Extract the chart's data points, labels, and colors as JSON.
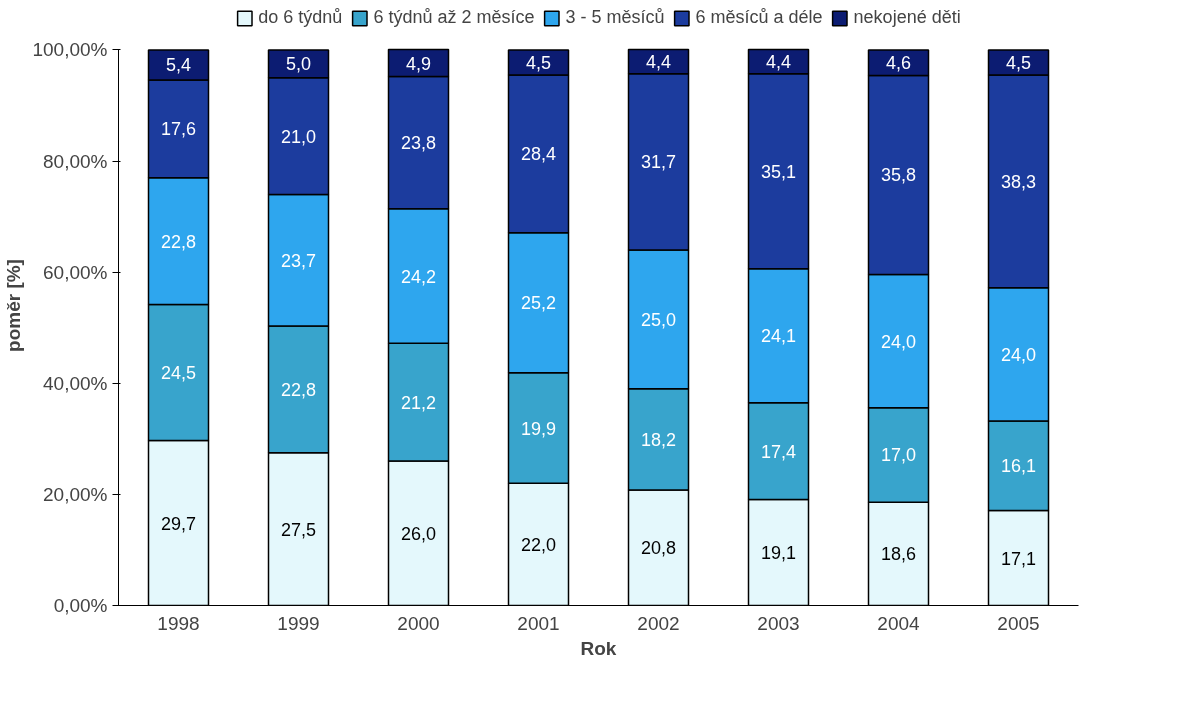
{
  "chart_data": {
    "type": "bar",
    "stacked": true,
    "xlabel": "Rok",
    "ylabel": "poměr [%]",
    "categories": [
      "1998",
      "1999",
      "2000",
      "2001",
      "2002",
      "2003",
      "2004",
      "2005"
    ],
    "ylim": [
      0,
      100
    ],
    "yticks": [
      {
        "value": 0,
        "label": "0,00%"
      },
      {
        "value": 20,
        "label": "20,00%"
      },
      {
        "value": 40,
        "label": "40,00%"
      },
      {
        "value": 60,
        "label": "60,00%"
      },
      {
        "value": 80,
        "label": "80,00%"
      },
      {
        "value": 100,
        "label": "100,00%"
      }
    ],
    "grid": false,
    "legend": "top",
    "series": [
      {
        "name": "do 6 týdnů",
        "color": "#e4f8fc",
        "values": [
          29.7,
          27.5,
          26.0,
          22.0,
          20.8,
          19.1,
          18.6,
          17.1
        ],
        "value_labels": [
          "29,7",
          "27,5",
          "26,0",
          "22,0",
          "20,8",
          "19,1",
          "18,6",
          "17,1"
        ]
      },
      {
        "name": "6 týdnů až 2 měsíce",
        "color": "#38a4cc",
        "values": [
          24.5,
          22.8,
          21.2,
          19.9,
          18.2,
          17.4,
          17.0,
          16.1
        ],
        "value_labels": [
          "24,5",
          "22,8",
          "21,2",
          "19,9",
          "18,2",
          "17,4",
          "17,0",
          "16,1"
        ]
      },
      {
        "name": "3 - 5 měsíců",
        "color": "#2ea6ee",
        "values": [
          22.8,
          23.7,
          24.2,
          25.2,
          25.0,
          24.1,
          24.0,
          24.0
        ],
        "value_labels": [
          "22,8",
          "23,7",
          "24,2",
          "25,2",
          "25,0",
          "24,1",
          "24,0",
          "24,0"
        ]
      },
      {
        "name": "6 měsíců a déle",
        "color": "#1c3c9e",
        "values": [
          17.6,
          21.0,
          23.8,
          28.4,
          31.7,
          35.1,
          35.8,
          38.3
        ],
        "value_labels": [
          "17,6",
          "21,0",
          "23,8",
          "28,4",
          "31,7",
          "35,1",
          "35,8",
          "38,3"
        ]
      },
      {
        "name": "nekojené děti",
        "color": "#0c1c72",
        "values": [
          5.4,
          5.0,
          4.9,
          4.5,
          4.4,
          4.4,
          4.6,
          4.5
        ],
        "value_labels": [
          "5,4",
          "5,0",
          "4,9",
          "4,5",
          "4,4",
          "4,4",
          "4,6",
          "4,5"
        ]
      }
    ]
  }
}
